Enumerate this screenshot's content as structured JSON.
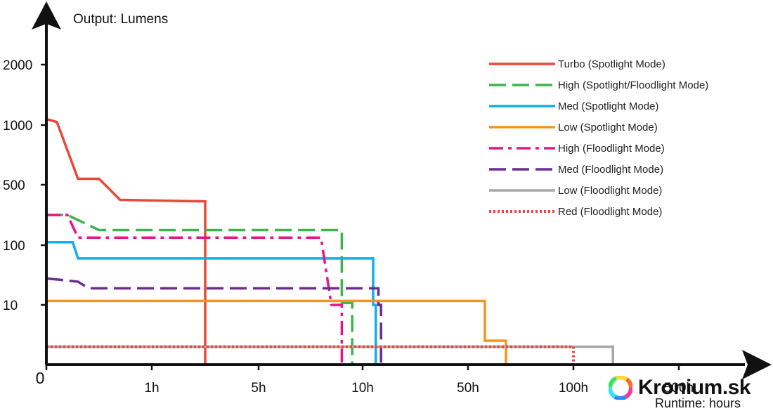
{
  "chart_data": {
    "type": "line",
    "ylabel": "Output: Lumens",
    "xlabel": "Runtime: hours",
    "x_ticks": [
      "0",
      "1h",
      "5h",
      "10h",
      "50h",
      "100h",
      "500h"
    ],
    "y_ticks": [
      "10",
      "100",
      "500",
      "1000",
      "2000"
    ],
    "series": [
      {
        "name": "Turbo (Spotlight Mode)",
        "color": "#e8473c",
        "style": "solid",
        "points": [
          [
            "0",
            1100
          ],
          [
            "0.1h",
            1050
          ],
          [
            "0.3h",
            550
          ],
          [
            "0.5h",
            550
          ],
          [
            "0.7h",
            400
          ],
          [
            "3h",
            390
          ],
          [
            "3h",
            0
          ]
        ]
      },
      {
        "name": "High (Spotlight/Floodlight Mode)",
        "color": "#3bb54a",
        "style": "dashed",
        "points": [
          [
            "0",
            300
          ],
          [
            "0.2h",
            300
          ],
          [
            "0.5h",
            200
          ],
          [
            "9h",
            200
          ],
          [
            "9h",
            13
          ],
          [
            "9.5h",
            13
          ],
          [
            "9.5h",
            0
          ]
        ]
      },
      {
        "name": "Med (Spotlight Mode)",
        "color": "#12aee8",
        "style": "solid",
        "points": [
          [
            "0",
            120
          ],
          [
            "0.25h",
            120
          ],
          [
            "0.3h",
            80
          ],
          [
            "14h",
            80
          ],
          [
            "14h",
            10
          ],
          [
            "15h",
            10
          ],
          [
            "15h",
            0
          ]
        ]
      },
      {
        "name": "Low (Spotlight Mode)",
        "color": "#f7931e",
        "style": "solid",
        "points": [
          [
            "0",
            16
          ],
          [
            "58h",
            16
          ],
          [
            "58h",
            4
          ],
          [
            "68h",
            4
          ],
          [
            "68h",
            0
          ]
        ]
      },
      {
        "name": "High (Floodlight Mode)",
        "color": "#e5158a",
        "style": "dashdot",
        "points": [
          [
            "0",
            300
          ],
          [
            "0.2h",
            300
          ],
          [
            "0.3h",
            150
          ],
          [
            "8h",
            150
          ],
          [
            "8.5h",
            10
          ],
          [
            "9h",
            10
          ],
          [
            "9h",
            0
          ]
        ]
      },
      {
        "name": "Med (Floodlight Mode)",
        "color": "#6a2c91",
        "style": "dashed",
        "points": [
          [
            "0",
            50
          ],
          [
            "0.3h",
            45
          ],
          [
            "0.4h",
            35
          ],
          [
            "16h",
            35
          ],
          [
            "16h",
            10
          ],
          [
            "17h",
            10
          ],
          [
            "17h",
            0
          ]
        ]
      },
      {
        "name": "Low (Floodlight Mode)",
        "color": "#a6a6a6",
        "style": "solid",
        "points": [
          [
            "0",
            3
          ],
          [
            "250h",
            3
          ],
          [
            "250h",
            0
          ]
        ]
      },
      {
        "name": "Red (Floodlight Mode)",
        "color": "#e8473c",
        "style": "dotted",
        "points": [
          [
            "0",
            3
          ],
          [
            "100h",
            3
          ],
          [
            "100h",
            0
          ]
        ]
      }
    ]
  },
  "branding": {
    "text": "Kronium.sk"
  }
}
